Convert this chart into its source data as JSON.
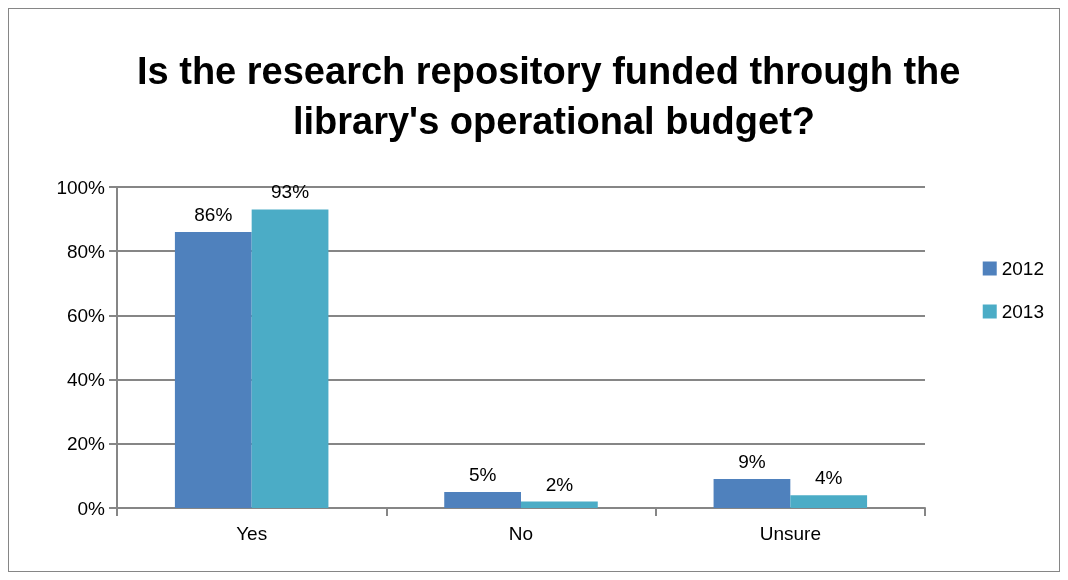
{
  "chart_data": {
    "type": "bar",
    "title": "Is the research repository funded through the library's operational budget?",
    "categories": [
      "Yes",
      "No",
      "Unsure"
    ],
    "series": [
      {
        "name": "2012",
        "color": "#4f81bd",
        "values": [
          86,
          5,
          9
        ],
        "value_labels": [
          "86%",
          "5%",
          "9%"
        ]
      },
      {
        "name": "2013",
        "color": "#4bacc6",
        "values": [
          93,
          2,
          4
        ],
        "value_labels": [
          "93%",
          "2%",
          "4%"
        ]
      }
    ],
    "ylim": [
      0,
      100
    ],
    "yticks": [
      {
        "value": 0,
        "label": "0%"
      },
      {
        "value": 20,
        "label": "20%"
      },
      {
        "value": 40,
        "label": "40%"
      },
      {
        "value": 60,
        "label": "60%"
      },
      {
        "value": 80,
        "label": "80%"
      },
      {
        "value": 100,
        "label": "100%"
      }
    ],
    "grid": "y",
    "legend": "right"
  }
}
